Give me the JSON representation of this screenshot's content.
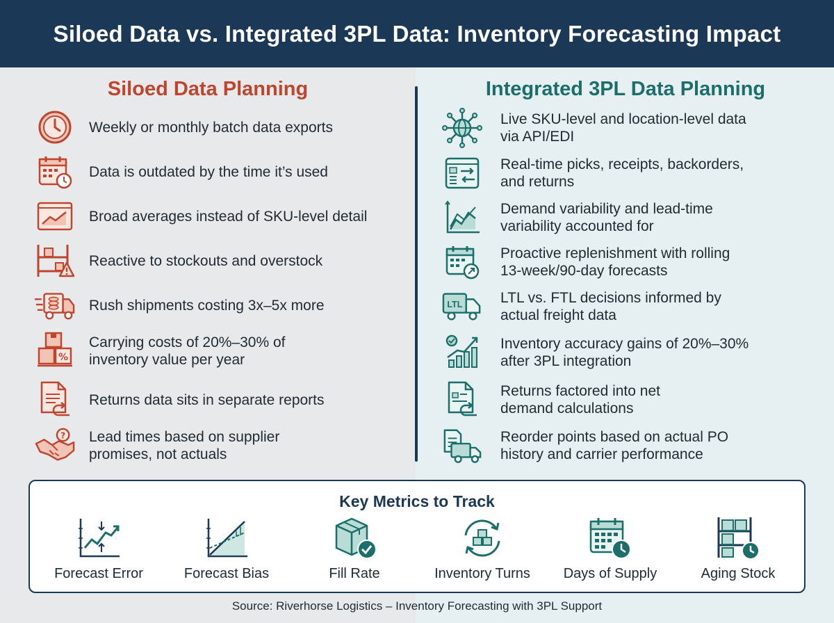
{
  "header": {
    "title": "Siloed Data vs. Integrated 3PL Data: Inventory Forecasting Impact"
  },
  "left": {
    "title": "Siloed Data Planning",
    "items": [
      {
        "icon": "clock-icon",
        "lines": [
          "Weekly or monthly batch data exports"
        ]
      },
      {
        "icon": "calendar-clock-icon",
        "lines": [
          "Data is outdated by the time it’s used"
        ]
      },
      {
        "icon": "averages-chart-icon",
        "lines": [
          "Broad averages instead of SKU-level detail"
        ]
      },
      {
        "icon": "shelf-warning-icon",
        "lines": [
          "Reactive to stockouts and overstock"
        ]
      },
      {
        "icon": "rush-truck-icon",
        "lines": [
          "Rush shipments costing 3x–5x more"
        ]
      },
      {
        "icon": "boxes-percent-icon",
        "lines": [
          "Carrying costs of 20%–30% of",
          "inventory value per year"
        ]
      },
      {
        "icon": "document-return-icon",
        "lines": [
          "Returns data sits in separate reports"
        ]
      },
      {
        "icon": "handshake-question-icon",
        "lines": [
          "Lead times based on supplier",
          "promises, not actuals"
        ]
      }
    ]
  },
  "right": {
    "title": "Integrated 3PL Data Planning",
    "items": [
      {
        "icon": "network-globe-icon",
        "lines": [
          "Live SKU-level and location-level data",
          "via API/EDI"
        ]
      },
      {
        "icon": "dashboard-sync-icon",
        "lines": [
          "Real-time picks, receipts, backorders,",
          "and returns"
        ]
      },
      {
        "icon": "variability-chart-icon",
        "lines": [
          "Demand variability and lead-time",
          "variability accounted for"
        ]
      },
      {
        "icon": "calendar-forecast-icon",
        "lines": [
          "Proactive replenishment with rolling",
          "13-week/90-day forecasts"
        ]
      },
      {
        "icon": "ltl-truck-icon",
        "lines": [
          "LTL vs. FTL decisions informed by",
          "actual freight data"
        ],
        "badge": "LTL"
      },
      {
        "icon": "accuracy-bars-icon",
        "lines": [
          "Inventory accuracy gains of 20%–30%",
          "after 3PL integration"
        ]
      },
      {
        "icon": "document-return-icon",
        "lines": [
          "Returns factored into net",
          "demand calculations"
        ]
      },
      {
        "icon": "po-truck-icon",
        "lines": [
          "Reorder points based on actual PO",
          "history and carrier performance"
        ]
      }
    ]
  },
  "metrics": {
    "title": "Key Metrics to Track",
    "items": [
      {
        "icon": "forecast-error-icon",
        "label": "Forecast Error"
      },
      {
        "icon": "forecast-bias-icon",
        "label": "Forecast Bias"
      },
      {
        "icon": "fill-rate-box-icon",
        "label": "Fill Rate"
      },
      {
        "icon": "inventory-turns-icon",
        "label": "Inventory Turns"
      },
      {
        "icon": "days-of-supply-icon",
        "label": "Days of Supply"
      },
      {
        "icon": "aging-stock-icon",
        "label": "Aging Stock"
      }
    ]
  },
  "source": "Source: Riverhorse Logistics – Inventory Forecasting with 3PL Support",
  "colors": {
    "header_bg": "#1c3857",
    "siloed_accent": "#c0452f",
    "integrated_accent": "#1b6e69",
    "siloed_fill": "#f2c4b6",
    "integrated_fill": "#b9ddd6"
  }
}
